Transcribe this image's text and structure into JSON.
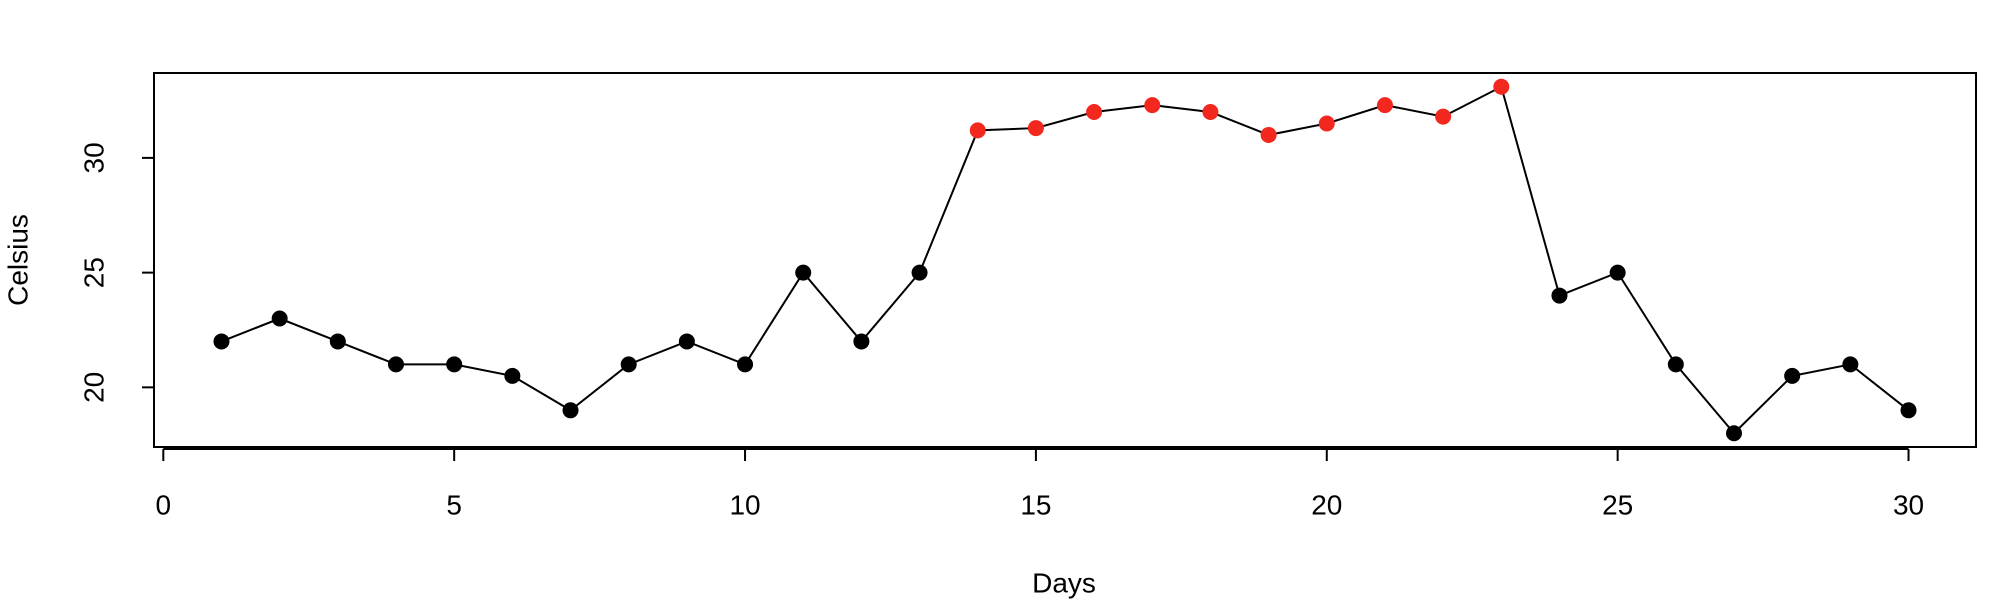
{
  "chart_data": {
    "type": "line",
    "xlabel": "Days",
    "ylabel": "Celsius",
    "x": [
      1,
      2,
      3,
      4,
      5,
      6,
      7,
      8,
      9,
      10,
      11,
      12,
      13,
      14,
      15,
      16,
      17,
      18,
      19,
      20,
      21,
      22,
      23,
      24,
      25,
      26,
      27,
      28,
      29,
      30
    ],
    "series": [
      {
        "color": "#000000",
        "values": [
          22,
          23,
          22,
          21,
          21,
          20.5,
          19,
          21,
          22,
          21,
          25,
          22,
          25,
          31.2,
          31.3,
          32,
          32.3,
          32,
          31,
          31.5,
          32.3,
          31.8,
          33.1,
          24,
          25,
          21,
          18,
          20.5,
          21,
          19
        ],
        "point_colors": [
          "#000000",
          "#000000",
          "#000000",
          "#000000",
          "#000000",
          "#000000",
          "#000000",
          "#000000",
          "#000000",
          "#000000",
          "#000000",
          "#000000",
          "#000000",
          "#f2281f",
          "#f2281f",
          "#f2281f",
          "#f2281f",
          "#f2281f",
          "#f2281f",
          "#f2281f",
          "#f2281f",
          "#f2281f",
          "#f2281f",
          "#000000",
          "#000000",
          "#000000",
          "#000000",
          "#000000",
          "#000000",
          "#000000"
        ]
      }
    ],
    "xlim": [
      -0.16,
      31.16
    ],
    "xticks": [
      0,
      5,
      10,
      15,
      20,
      25,
      30
    ],
    "ylim": [
      17.4,
      33.7
    ],
    "yticks": [
      20,
      25,
      30
    ]
  }
}
